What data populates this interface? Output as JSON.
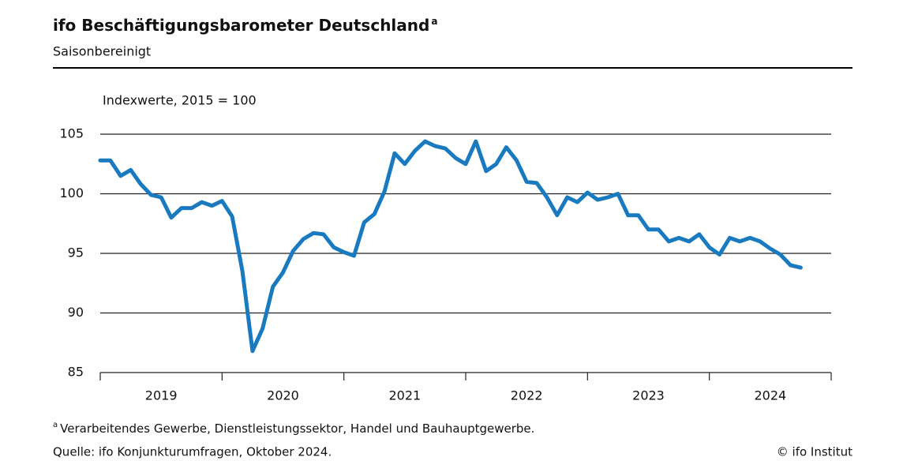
{
  "chart_data": {
    "type": "line",
    "title": "ifo Beschäftigungsbarometer Deutschland",
    "title_marker": "a",
    "subtitle": "Saisonbereinigt",
    "y_axis_label": "Indexwerte, 2015 = 100",
    "x": [
      2019,
      2019.083,
      2019.167,
      2019.25,
      2019.333,
      2019.417,
      2019.5,
      2019.583,
      2019.667,
      2019.75,
      2019.833,
      2019.917,
      2020,
      2020.083,
      2020.167,
      2020.25,
      2020.333,
      2020.417,
      2020.5,
      2020.583,
      2020.667,
      2020.75,
      2020.833,
      2020.917,
      2021,
      2021.083,
      2021.167,
      2021.25,
      2021.333,
      2021.417,
      2021.5,
      2021.583,
      2021.667,
      2021.75,
      2021.833,
      2021.917,
      2022,
      2022.083,
      2022.167,
      2022.25,
      2022.333,
      2022.417,
      2022.5,
      2022.583,
      2022.667,
      2022.75,
      2022.833,
      2022.917,
      2023,
      2023.083,
      2023.167,
      2023.25,
      2023.333,
      2023.417,
      2023.5,
      2023.583,
      2023.667,
      2023.75,
      2023.833,
      2023.917,
      2024,
      2024.083,
      2024.167,
      2024.25,
      2024.333,
      2024.417,
      2024.5,
      2024.583,
      2024.667,
      2024.75
    ],
    "series": [
      {
        "color": "#1a7abf",
        "values": [
          102.8,
          102.8,
          101.5,
          102.0,
          100.8,
          99.9,
          99.7,
          98.0,
          98.8,
          98.8,
          99.3,
          99.0,
          99.4,
          98.1,
          93.5,
          86.8,
          88.7,
          92.2,
          93.4,
          95.2,
          96.2,
          96.7,
          96.6,
          95.5,
          95.1,
          94.8,
          97.6,
          98.3,
          100.2,
          103.4,
          102.5,
          103.6,
          104.4,
          104.0,
          103.8,
          103.0,
          102.5,
          104.4,
          101.9,
          102.5,
          103.9,
          102.8,
          101.0,
          100.9,
          99.7,
          98.2,
          99.7,
          99.3,
          100.1,
          99.5,
          99.7,
          100.0,
          98.2,
          98.2,
          97.0,
          97.0,
          96.0,
          96.3,
          96.0,
          96.6,
          95.5,
          94.9,
          96.3,
          96.0,
          96.3,
          96.0,
          95.4,
          94.9,
          94.0,
          93.8
        ]
      }
    ],
    "xlim": [
      2019,
      2025
    ],
    "xticks": [
      2019,
      2020,
      2021,
      2022,
      2023,
      2024,
      2025
    ],
    "year_labels": [
      "2019",
      "2020",
      "2021",
      "2022",
      "2023",
      "2024"
    ],
    "ylim": [
      85,
      105
    ],
    "yticks": [
      85,
      90,
      95,
      100,
      105
    ],
    "grid": true,
    "footnote": {
      "marker": "a",
      "text": "Verarbeitendes  Gewerbe,  Dienstleistungssektor,  Handel und Bauhauptgewerbe."
    },
    "source": "Quelle:  ifo Konjunkturumfragen,  Oktober 2024.",
    "credit": "© ifo Institut"
  }
}
